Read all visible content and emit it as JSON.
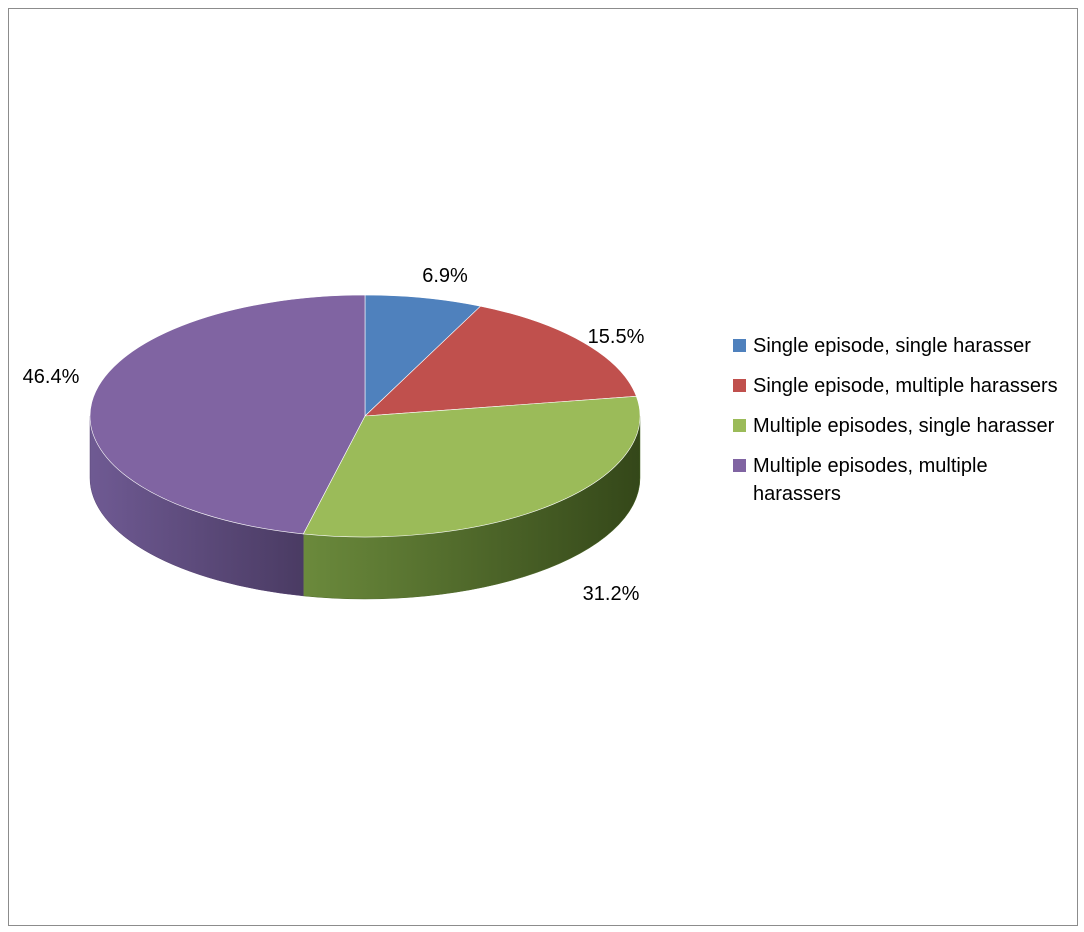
{
  "chart_data": {
    "type": "pie",
    "title": "",
    "categories": [
      "Single episode, single harasser",
      "Single episode, multiple harassers",
      "Multiple episodes, single harasser",
      "Multiple episodes, multiple harassers"
    ],
    "values": [
      6.9,
      15.5,
      31.2,
      46.4
    ],
    "labels": [
      "6.9%",
      "15.5%",
      "31.2%",
      "46.4%"
    ],
    "colors": [
      "#4f81bd",
      "#c0504d",
      "#9bbb59",
      "#8064a2"
    ],
    "three_d": true,
    "legend_position": "right"
  }
}
